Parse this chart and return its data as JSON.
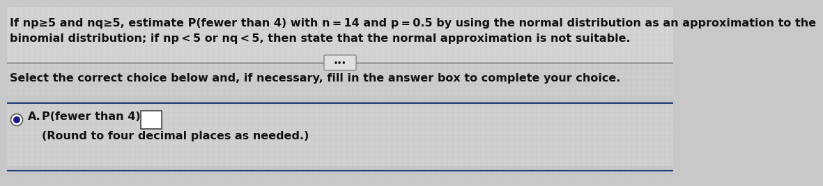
{
  "bg_color": "#c8c8c8",
  "line1": "If np≥5 and nq≥5, estimate P(fewer than 4) with n = 14 and p = 0.5 by using the normal distribution as an approximation to the",
  "line2": "binomial distribution; if np < 5 or nq < 5, then state that the normal approximation is not suitable.",
  "select_text": "Select the correct choice below and, if necessary, fill in the answer box to complete your choice.",
  "choice_A_label": "A.",
  "choice_A_line1": "P(fewer than 4) =",
  "choice_A_line2": "(Round to four decimal places as needed.)",
  "dots_button": "•••",
  "font_size_main": 11.5,
  "text_color": "#111111",
  "sep_color": "#666666",
  "sep_color2": "#1a3a7a",
  "button_bg": "#e0e0e0",
  "button_border": "#888888",
  "radio_outer": "#555555",
  "radio_inner": "#1a1a8a",
  "answer_box_color": "#444444",
  "grid_color": "#b8b8b8"
}
